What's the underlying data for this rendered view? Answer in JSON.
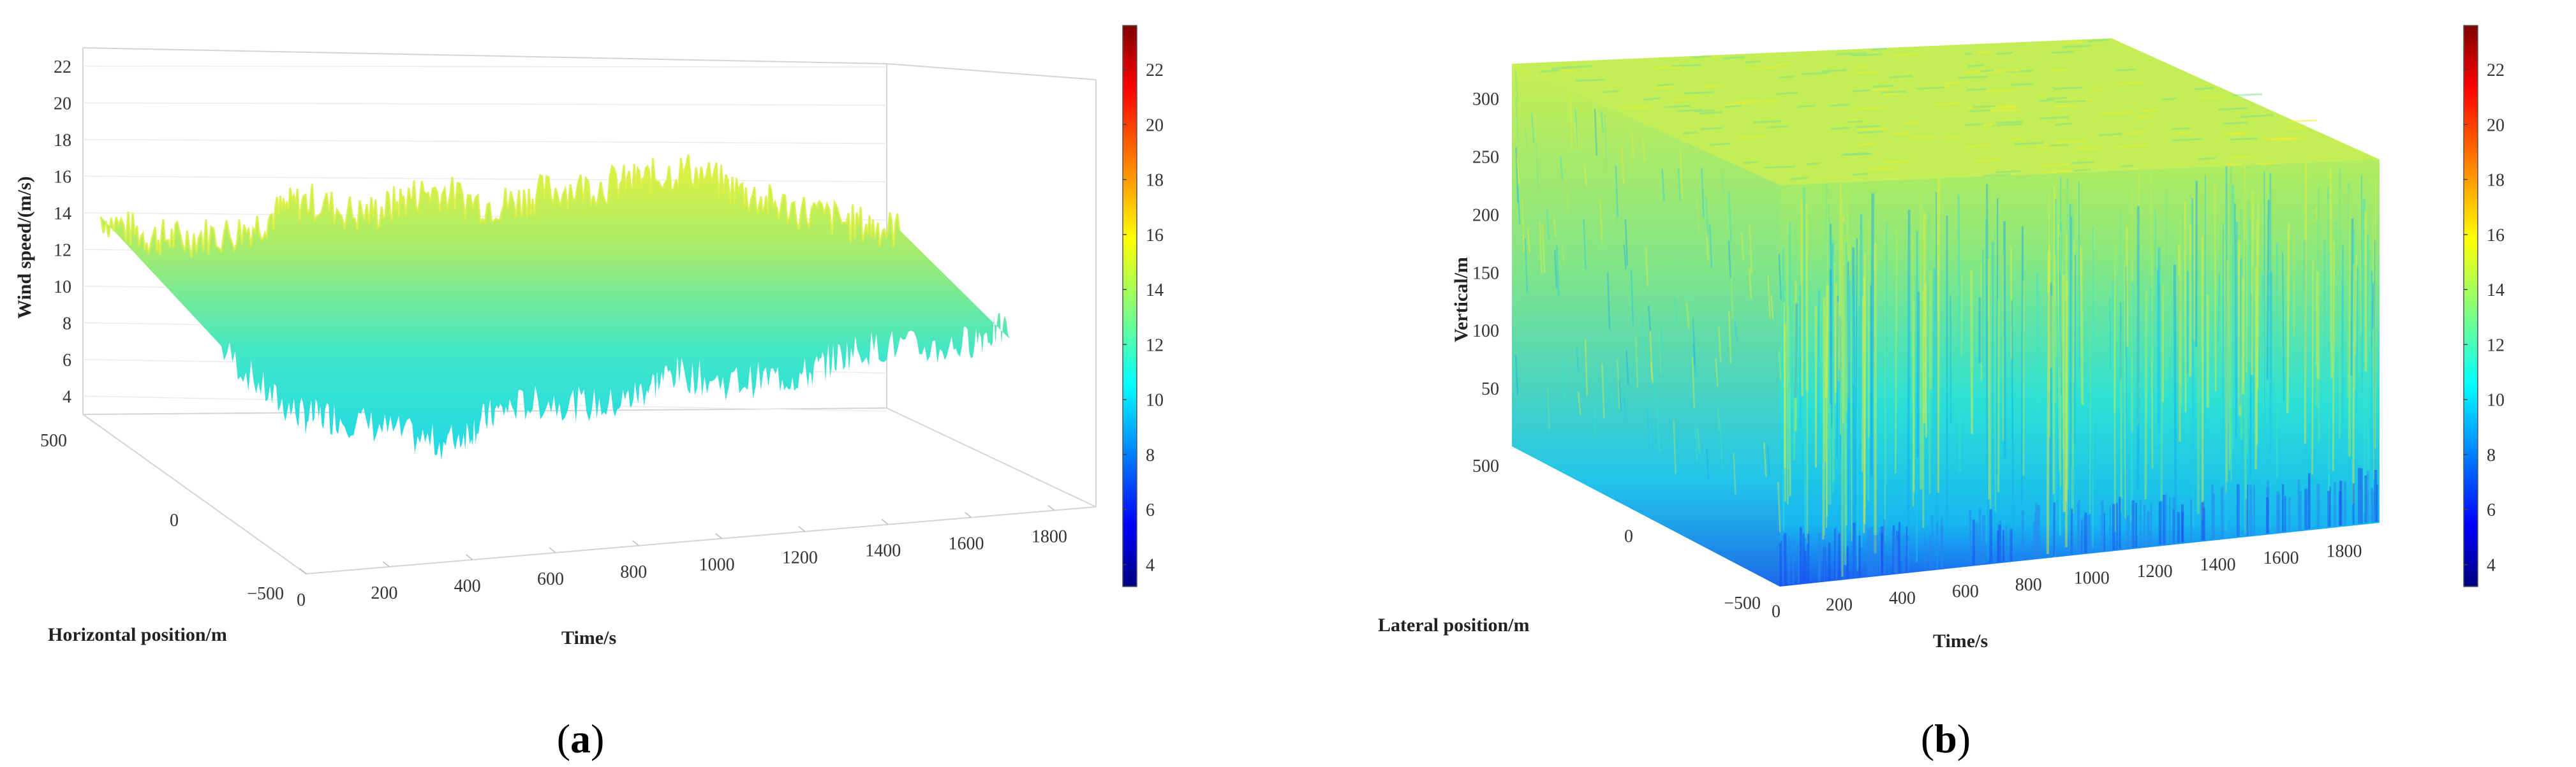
{
  "captions": {
    "a": "a",
    "b": "b"
  },
  "chart_data": [
    {
      "type": "surface3d",
      "panel": "a",
      "zlabel": "Wind speed/(m/s)",
      "xlabel": "Time/s",
      "ylabel": "Horizontal position/m",
      "x_ticks": [
        "0",
        "200",
        "400",
        "600",
        "800",
        "1000",
        "1200",
        "1400",
        "1600",
        "1800"
      ],
      "y_ticks": [
        "500",
        "0",
        "−500"
      ],
      "z_ticks": [
        "22",
        "20",
        "18",
        "16",
        "14",
        "12",
        "10",
        "8",
        "6",
        "4"
      ],
      "zlim": [
        4,
        22
      ],
      "colorbar": {
        "range": [
          4,
          22
        ],
        "ticks": [
          "22",
          "20",
          "18",
          "16",
          "14",
          "12",
          "10",
          "8",
          "6",
          "4"
        ],
        "colormap": "jet"
      },
      "mean_wind_speed_profile": {
        "time": [
          0,
          100,
          200,
          300,
          400,
          500,
          600,
          700,
          800,
          900,
          1000,
          1100,
          1200,
          1300,
          1400,
          1500,
          1600,
          1700,
          1800,
          1900
        ],
        "upper_envelope": [
          14.5,
          13.5,
          13.0,
          13.5,
          14.5,
          15.0,
          14.5,
          15.0,
          15.5,
          15.0,
          15.0,
          15.5,
          16.0,
          16.0,
          16.5,
          15.5,
          14.5,
          14.0,
          13.5,
          13.0
        ],
        "lower_envelope": [
          12.0,
          9.5,
          8.0,
          7.5,
          7.0,
          6.5,
          7.0,
          7.5,
          8.0,
          8.0,
          8.5,
          9.0,
          8.5,
          9.0,
          9.0,
          9.5,
          10.0,
          10.0,
          10.5,
          10.5
        ]
      }
    },
    {
      "type": "volume3d",
      "panel": "b",
      "zlabel": "Vertical/m",
      "xlabel": "Time/s",
      "ylabel": "Lateral position/m",
      "x_ticks": [
        "0",
        "200",
        "400",
        "600",
        "800",
        "1000",
        "1200",
        "1400",
        "1600",
        "1800"
      ],
      "y_ticks": [
        "500",
        "0",
        "−500"
      ],
      "z_ticks": [
        "300",
        "250",
        "200",
        "150",
        "100",
        "50"
      ],
      "colorbar": {
        "range": [
          4,
          22
        ],
        "ticks": [
          "22",
          "20",
          "18",
          "16",
          "14",
          "12",
          "10",
          "8",
          "6",
          "4"
        ],
        "colormap": "jet"
      },
      "wind_speed_by_height": {
        "height": [
          0,
          50,
          100,
          150,
          200,
          250,
          300,
          330
        ],
        "mean_speed": [
          8.5,
          11.0,
          12.5,
          13.5,
          14.0,
          14.5,
          15.0,
          15.0
        ]
      }
    }
  ]
}
